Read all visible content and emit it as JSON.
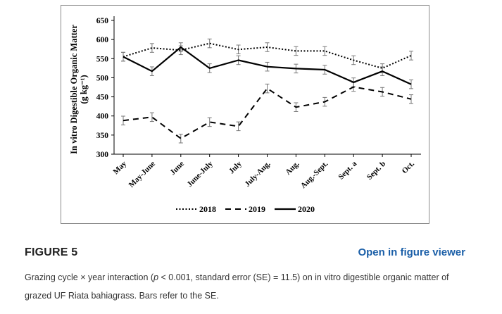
{
  "figure": {
    "label": "FIGURE 5",
    "viewer_link": "Open in figure viewer",
    "caption": {
      "pre": "Grazing cycle × year interaction (",
      "p_italic": "p",
      "post": " < 0.001, standard error (SE) = 11.5) on in vitro digestible organic matter of grazed UF Riata bahiagrass. Bars refer to the SE."
    }
  },
  "colors": {
    "series": "#000000",
    "axis": "#000000",
    "frame": "#8a8a8a",
    "link": "#1b5fa8"
  },
  "chart_data": {
    "type": "line",
    "title": "",
    "xlabel": "",
    "ylabel": "In vitro Digestible Organic Matter (g kg⁻¹)",
    "ylabel_line1": "In vitro Digestible Organic Matter",
    "ylabel_line2": "(g kg⁻¹)",
    "ylim": [
      300,
      650
    ],
    "yticks": [
      300,
      350,
      400,
      450,
      500,
      550,
      600,
      650
    ],
    "grid": false,
    "legend_position": "bottom-center",
    "categories": [
      "May",
      "May-June",
      "June",
      "June-July",
      "July",
      "July-Aug.",
      "Aug.",
      "Aug.-Sept.",
      "Sept. a",
      "Sept. b",
      "Oct."
    ],
    "error": 11.5,
    "series": [
      {
        "name": "2018",
        "style": "dotted",
        "values": [
          555,
          578,
          572,
          590,
          574,
          580,
          570,
          570,
          546,
          525,
          558
        ]
      },
      {
        "name": "2019",
        "style": "dashed",
        "values": [
          388,
          397,
          341,
          384,
          373,
          472,
          423,
          437,
          476,
          463,
          444
        ]
      },
      {
        "name": "2020",
        "style": "solid",
        "values": [
          555,
          517,
          580,
          525,
          546,
          529,
          524,
          521,
          488,
          517,
          483
        ]
      }
    ]
  }
}
